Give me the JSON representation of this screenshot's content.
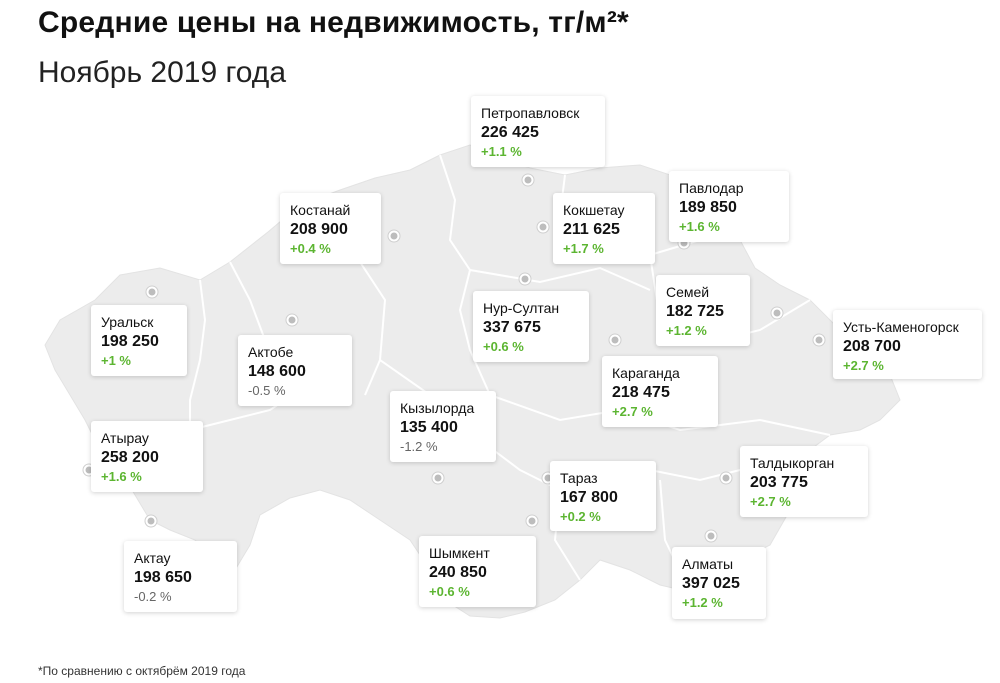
{
  "header": {
    "title": "Средние цены на недвижимость, тг/м²*",
    "subtitle": "Ноябрь 2019 года"
  },
  "footnote": "*По сравнению с октябрём 2019 года",
  "colors": {
    "map_fill": "#ececec",
    "border": "#ffffff",
    "positive": "#5cb531",
    "neutral": "#666666"
  },
  "cities": [
    {
      "name": "Петропавловск",
      "price": "226 425",
      "change": "+1.1 %",
      "trend": "up"
    },
    {
      "name": "Павлодар",
      "price": "189 850",
      "change": "+1.6 %",
      "trend": "up"
    },
    {
      "name": "Костанай",
      "price": "208 900",
      "change": "+0.4 %",
      "trend": "up"
    },
    {
      "name": "Кокшетау",
      "price": "211 625",
      "change": "+1.7 %",
      "trend": "up"
    },
    {
      "name": "Семей",
      "price": "182 725",
      "change": "+1.2 %",
      "trend": "up"
    },
    {
      "name": "Уральск",
      "price": "198 250",
      "change": "+1 %",
      "trend": "up"
    },
    {
      "name": "Нур-Султан",
      "price": "337 675",
      "change": "+0.6 %",
      "trend": "up"
    },
    {
      "name": "Усть-Каменогорск",
      "price": "208 700",
      "change": "+2.7 %",
      "trend": "up"
    },
    {
      "name": "Актобе",
      "price": "148 600",
      "change": "-0.5 %",
      "trend": "down"
    },
    {
      "name": "Караганда",
      "price": "218 475",
      "change": "+2.7 %",
      "trend": "up"
    },
    {
      "name": "Кызылорда",
      "price": "135 400",
      "change": "-1.2 %",
      "trend": "down"
    },
    {
      "name": "Атырау",
      "price": "258 200",
      "change": "+1.6 %",
      "trend": "up"
    },
    {
      "name": "Талдыкорган",
      "price": "203 775",
      "change": "+2.7  %",
      "trend": "up"
    },
    {
      "name": "Тараз",
      "price": "167 800",
      "change": "+0.2 %",
      "trend": "up"
    },
    {
      "name": "Актау",
      "price": "198 650",
      "change": "-0.2 %",
      "trend": "down"
    },
    {
      "name": "Шымкент",
      "price": "240 850",
      "change": "+0.6 %",
      "trend": "up"
    },
    {
      "name": "Алматы",
      "price": "397 025",
      "change": "+1.2 %",
      "trend": "up"
    }
  ]
}
